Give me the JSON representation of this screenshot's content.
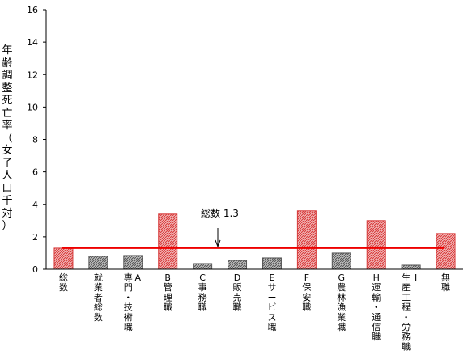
{
  "chart_data": {
    "type": "bar",
    "title": "",
    "xlabel": "",
    "ylabel": "年齢調整死亡率（女子人口千対）",
    "ylim": [
      0,
      16
    ],
    "yticks": [
      0,
      2,
      4,
      6,
      8,
      10,
      12,
      14,
      16
    ],
    "grid": false,
    "categories": [
      "総数",
      "就業者総数",
      "A専門・技術職",
      "B管理職",
      "C事務職",
      "D販売職",
      "Eサービス職",
      "F保安職",
      "G農林漁業職",
      "H運輸・通信職",
      "I生産工程・労務職",
      "無職"
    ],
    "category_lines": [
      [
        "総数"
      ],
      [
        "就業者総数"
      ],
      [
        "A",
        "専門・技術職"
      ],
      [
        "B管理職"
      ],
      [
        "C事務職"
      ],
      [
        "D販売職"
      ],
      [
        "Eサービス職"
      ],
      [
        "F保安職"
      ],
      [
        "G農林漁業職"
      ],
      [
        "H運輸・通信職"
      ],
      [
        "I",
        "生産工程・労務職"
      ],
      [
        "無職"
      ]
    ],
    "values": [
      1.3,
      0.8,
      0.85,
      3.4,
      0.35,
      0.55,
      0.7,
      3.6,
      1.0,
      3.0,
      0.25,
      2.2
    ],
    "series": [
      {
        "values": [
          1.3,
          0.8,
          0.85,
          3.4,
          0.35,
          0.55,
          0.7,
          3.6,
          1.0,
          3.0,
          0.25,
          2.2
        ]
      }
    ],
    "reference_line": {
      "value": 1.3,
      "label": "総数 1.3"
    },
    "colors": {
      "red_bar": "#d73a3a",
      "gray_bar": "#555555",
      "reference": "#ee0000",
      "axis": "#000000"
    },
    "highlight_pattern": [
      "red",
      "gray",
      "gray",
      "red",
      "gray",
      "gray",
      "gray",
      "red",
      "gray",
      "red",
      "gray",
      "red"
    ]
  }
}
